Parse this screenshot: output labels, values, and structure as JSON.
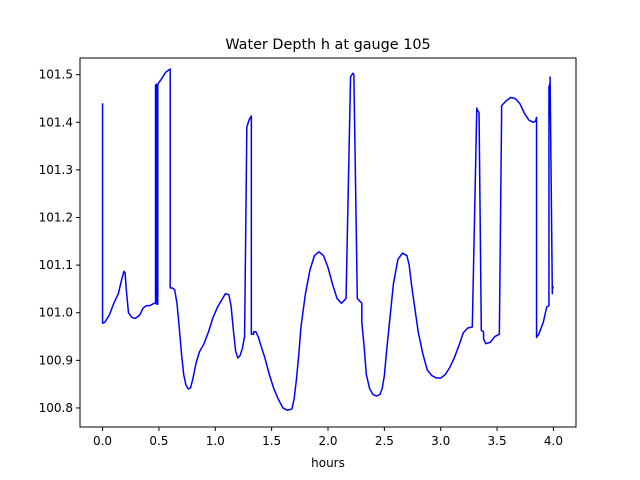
{
  "chart_data": {
    "type": "line",
    "title": "Water Depth h at gauge 105",
    "xlabel": "hours",
    "ylabel": "",
    "xlim": [
      -0.2,
      4.2
    ],
    "ylim": [
      100.76,
      101.535
    ],
    "grid": false,
    "xticks": [
      0.0,
      0.5,
      1.0,
      1.5,
      2.0,
      2.5,
      3.0,
      3.5,
      4.0
    ],
    "xtick_labels": [
      "0.0",
      "0.5",
      "1.0",
      "1.5",
      "2.0",
      "2.5",
      "3.0",
      "3.5",
      "4.0"
    ],
    "yticks": [
      100.8,
      100.9,
      101.0,
      101.1,
      101.2,
      101.3,
      101.4,
      101.5
    ],
    "ytick_labels": [
      "100.8",
      "100.9",
      "101.0",
      "101.1",
      "101.2",
      "101.3",
      "101.4",
      "101.5"
    ],
    "series": [
      {
        "color": "#0000ff",
        "x": [
          0.0,
          0.0,
          0.02,
          0.06,
          0.1,
          0.14,
          0.17,
          0.19,
          0.2,
          0.21,
          0.23,
          0.26,
          0.29,
          0.33,
          0.36,
          0.39,
          0.42,
          0.46,
          0.47,
          0.47,
          0.48,
          0.48,
          0.49,
          0.49,
          0.52,
          0.56,
          0.6,
          0.6,
          0.62,
          0.64,
          0.66,
          0.68,
          0.7,
          0.72,
          0.74,
          0.76,
          0.78,
          0.8,
          0.83,
          0.86,
          0.9,
          0.94,
          0.98,
          1.02,
          1.06,
          1.09,
          1.12,
          1.14,
          1.16,
          1.18,
          1.2,
          1.22,
          1.24,
          1.26,
          1.28,
          1.3,
          1.32,
          1.32,
          1.34,
          1.34,
          1.36,
          1.38,
          1.4,
          1.44,
          1.48,
          1.52,
          1.56,
          1.6,
          1.64,
          1.68,
          1.7,
          1.72,
          1.74,
          1.76,
          1.8,
          1.84,
          1.88,
          1.92,
          1.96,
          2.0,
          2.04,
          2.08,
          2.12,
          2.16,
          2.2,
          2.22,
          2.23,
          2.23,
          2.26,
          2.3,
          2.3,
          2.32,
          2.34,
          2.37,
          2.4,
          2.43,
          2.46,
          2.48,
          2.5,
          2.52,
          2.55,
          2.58,
          2.62,
          2.66,
          2.7,
          2.72,
          2.74,
          2.77,
          2.8,
          2.84,
          2.88,
          2.92,
          2.96,
          3.0,
          3.04,
          3.08,
          3.12,
          3.16,
          3.2,
          3.24,
          3.28,
          3.32,
          3.32,
          3.34,
          3.36,
          3.38,
          3.38,
          3.4,
          3.44,
          3.48,
          3.52,
          3.54,
          3.54,
          3.58,
          3.62,
          3.66,
          3.7,
          3.74,
          3.78,
          3.82,
          3.84,
          3.85,
          3.85,
          3.87,
          3.91,
          3.94,
          3.96,
          3.96,
          3.97,
          3.97,
          3.99,
          3.99,
          4.0
        ],
        "y": [
          101.44,
          100.978,
          100.98,
          100.995,
          101.02,
          101.04,
          101.07,
          101.087,
          101.084,
          101.05,
          101.0,
          100.99,
          100.988,
          100.995,
          101.01,
          101.015,
          101.015,
          101.02,
          101.02,
          101.478,
          101.48,
          101.018,
          101.018,
          101.48,
          101.49,
          101.505,
          101.512,
          101.052,
          101.052,
          101.048,
          101.02,
          100.97,
          100.915,
          100.87,
          100.848,
          100.84,
          100.842,
          100.86,
          100.895,
          100.918,
          100.935,
          100.96,
          100.99,
          101.012,
          101.028,
          101.04,
          101.038,
          101.015,
          100.965,
          100.92,
          100.905,
          100.91,
          100.925,
          100.95,
          101.39,
          101.405,
          101.413,
          100.955,
          100.955,
          100.96,
          100.96,
          100.95,
          100.935,
          100.905,
          100.87,
          100.84,
          100.818,
          100.8,
          100.795,
          100.798,
          100.82,
          100.86,
          100.91,
          100.97,
          101.04,
          101.09,
          101.12,
          101.128,
          101.12,
          101.095,
          101.06,
          101.03,
          101.02,
          101.03,
          101.495,
          101.503,
          101.5,
          101.49,
          101.03,
          101.02,
          100.98,
          100.93,
          100.87,
          100.84,
          100.828,
          100.825,
          100.828,
          100.84,
          100.868,
          100.92,
          100.99,
          101.06,
          101.112,
          101.125,
          101.12,
          101.1,
          101.06,
          101.01,
          100.96,
          100.915,
          100.88,
          100.868,
          100.863,
          100.863,
          100.87,
          100.885,
          100.905,
          100.93,
          100.958,
          100.968,
          100.97,
          101.43,
          101.428,
          101.42,
          100.963,
          100.96,
          100.945,
          100.935,
          100.938,
          100.95,
          100.955,
          101.418,
          101.435,
          101.445,
          101.452,
          101.45,
          101.44,
          101.42,
          101.405,
          101.4,
          101.402,
          101.41,
          100.948,
          100.955,
          100.98,
          101.012,
          101.015,
          101.475,
          101.482,
          101.495,
          101.04,
          101.05,
          101.055
        ]
      }
    ]
  }
}
